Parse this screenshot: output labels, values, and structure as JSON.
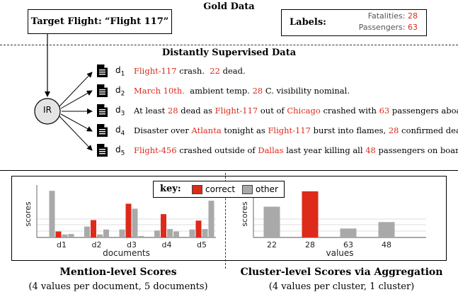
{
  "gold": {
    "title": "Gold Data",
    "target_prefix": "Target Flight:",
    "target_value": "“Flight 117”",
    "labels_title": "Labels:",
    "label_items": [
      {
        "name": "Fatalities:",
        "value": "28"
      },
      {
        "name": "Passengers:",
        "value": "63"
      }
    ]
  },
  "distant": {
    "title": "Distantly Supervised Data",
    "ir_label": "IR",
    "docs": [
      {
        "id": "d",
        "sub": "1",
        "parts": [
          {
            "t": "Flight-117",
            "r": true
          },
          {
            "t": " crash.  ",
            "r": false
          },
          {
            "t": "22",
            "r": true
          },
          {
            "t": " dead.",
            "r": false
          }
        ]
      },
      {
        "id": "d",
        "sub": "2",
        "parts": [
          {
            "t": "March 10th.",
            "r": true
          },
          {
            "t": "  ambient temp. ",
            "r": false
          },
          {
            "t": "28",
            "r": true
          },
          {
            "t": " C. visibility nominal.",
            "r": false
          }
        ]
      },
      {
        "id": "d",
        "sub": "3",
        "parts": [
          {
            "t": "At least ",
            "r": false
          },
          {
            "t": "28",
            "r": true
          },
          {
            "t": " dead as ",
            "r": false
          },
          {
            "t": "Flight-117",
            "r": true
          },
          {
            "t": " out of ",
            "r": false
          },
          {
            "t": "Chicago",
            "r": true
          },
          {
            "t": " crashed with ",
            "r": false
          },
          {
            "t": "63",
            "r": true
          },
          {
            "t": " passengers aboard.",
            "r": false
          }
        ]
      },
      {
        "id": "d",
        "sub": "4",
        "parts": [
          {
            "t": "Disaster over ",
            "r": false
          },
          {
            "t": "Atlanta",
            "r": true
          },
          {
            "t": " tonight as ",
            "r": false
          },
          {
            "t": "Flight-117",
            "r": true
          },
          {
            "t": " burst into flames, ",
            "r": false
          },
          {
            "t": "28",
            "r": true
          },
          {
            "t": " confirmed dead.",
            "r": false
          }
        ]
      },
      {
        "id": "d",
        "sub": "5",
        "parts": [
          {
            "t": "Flight-456",
            "r": true
          },
          {
            "t": " crashed outside of ",
            "r": false
          },
          {
            "t": "Dallas",
            "r": true
          },
          {
            "t": " last year killing all ",
            "r": false
          },
          {
            "t": "48",
            "r": true
          },
          {
            "t": " passengers on board.",
            "r": false
          }
        ]
      }
    ]
  },
  "legend": {
    "key": "key:",
    "correct": "correct",
    "other": "other"
  },
  "colors": {
    "correct": "#dd2a1a",
    "other": "#a9a9a9"
  },
  "chart_data": [
    {
      "type": "bar",
      "ylabel": "scores",
      "xlabel": "documents",
      "categories": [
        "d1",
        "d2",
        "d3",
        "d4",
        "d5"
      ],
      "ylim": [
        0,
        1
      ],
      "bars": [
        [
          {
            "v": 0.94,
            "c": "other"
          },
          {
            "v": 0.12,
            "c": "correct"
          },
          {
            "v": 0.06,
            "c": "other"
          },
          {
            "v": 0.07,
            "c": "other"
          }
        ],
        [
          {
            "v": 0.22,
            "c": "other"
          },
          {
            "v": 0.35,
            "c": "correct"
          },
          {
            "v": 0.06,
            "c": "other"
          },
          {
            "v": 0.16,
            "c": "other"
          }
        ],
        [
          {
            "v": 0.16,
            "c": "other"
          },
          {
            "v": 0.68,
            "c": "correct"
          },
          {
            "v": 0.58,
            "c": "other"
          },
          {
            "v": 0.03,
            "c": "other"
          }
        ],
        [
          {
            "v": 0.14,
            "c": "other"
          },
          {
            "v": 0.47,
            "c": "correct"
          },
          {
            "v": 0.17,
            "c": "other"
          },
          {
            "v": 0.12,
            "c": "other"
          }
        ],
        [
          {
            "v": 0.16,
            "c": "other"
          },
          {
            "v": 0.34,
            "c": "correct"
          },
          {
            "v": 0.17,
            "c": "other"
          },
          {
            "v": 0.74,
            "c": "other"
          }
        ]
      ]
    },
    {
      "type": "bar",
      "ylabel": "scores",
      "xlabel": "values",
      "categories": [
        "22",
        "28",
        "63",
        "48"
      ],
      "ylim": [
        0,
        1
      ],
      "bars": [
        [
          {
            "v": 0.62,
            "c": "other"
          }
        ],
        [
          {
            "v": 0.93,
            "c": "correct"
          }
        ],
        [
          {
            "v": 0.18,
            "c": "other"
          }
        ],
        [
          {
            "v": 0.31,
            "c": "other"
          }
        ]
      ]
    }
  ],
  "captions": {
    "left_title": "Mention-level Scores",
    "left_sub": "(4 values per document, 5 documents)",
    "right_title": "Cluster-level Scores via Aggregation",
    "right_sub": "(4 values per cluster, 1 cluster)"
  }
}
